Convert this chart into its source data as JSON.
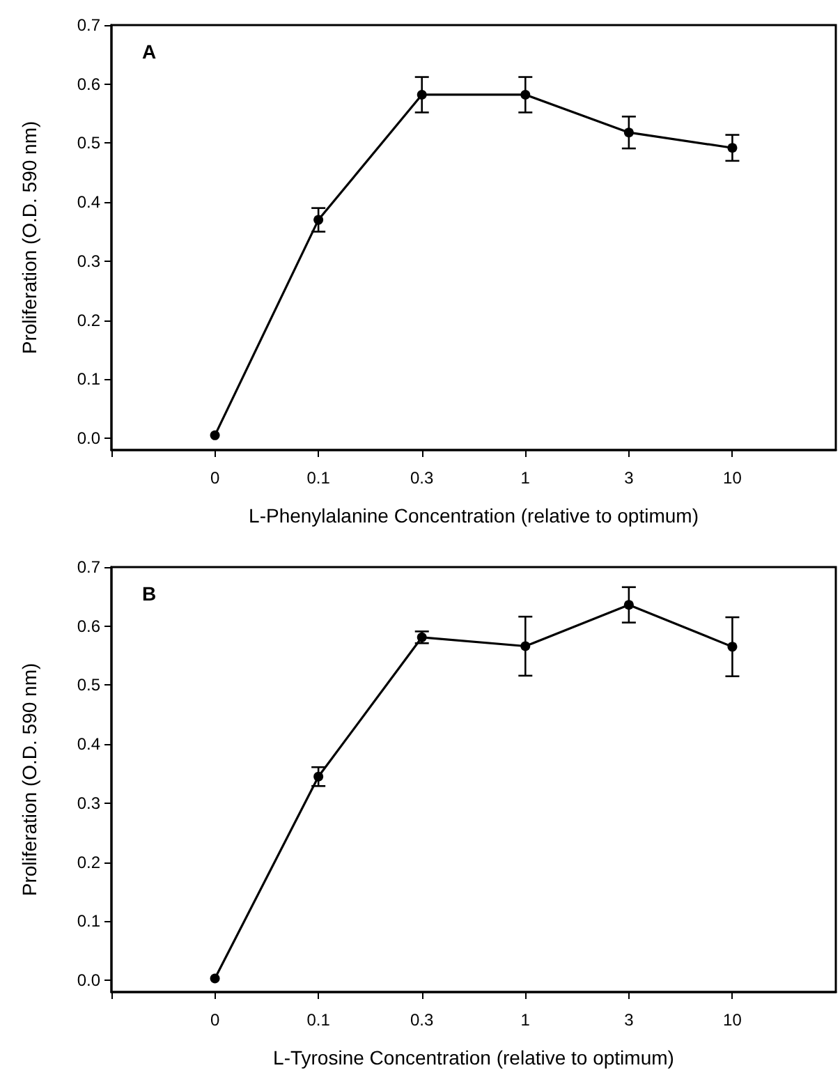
{
  "chart_data": [
    {
      "type": "line",
      "annotations": [
        "A"
      ],
      "xlabel": "L-Phenylalanine Concentration (relative to optimum)",
      "ylabel": "Proliferation (O.D. 590 nm)",
      "categories": [
        null,
        "0",
        "0.1",
        "0.3",
        "1",
        "3",
        "10",
        null
      ],
      "series": [
        {
          "color": "#000000",
          "values": [
            null,
            0.005,
            0.37,
            0.582,
            0.582,
            0.518,
            0.492,
            null
          ],
          "errors": [
            null,
            null,
            0.02,
            0.03,
            0.03,
            0.027,
            0.022,
            null
          ]
        }
      ],
      "ylim": [
        -0.02,
        0.7
      ],
      "yticks": [
        {
          "value": 0,
          "label": "0.0"
        },
        0.1,
        0.2,
        0.3,
        0.4,
        0.5,
        0.6,
        0.7
      ],
      "grid": false,
      "marker": "circle",
      "line_style": "solid"
    },
    {
      "type": "line",
      "annotations": [
        "B"
      ],
      "xlabel": "L-Tyrosine Concentration (relative to optimum)",
      "ylabel": "Proliferation (O.D. 590 nm)",
      "categories": [
        null,
        "0",
        "0.1",
        "0.3",
        "1",
        "3",
        "10",
        null
      ],
      "series": [
        {
          "color": "#000000",
          "values": [
            null,
            0.003,
            0.345,
            0.581,
            0.566,
            0.636,
            0.565,
            null
          ],
          "errors": [
            null,
            null,
            0.016,
            0.01,
            0.05,
            0.03,
            0.05,
            null
          ]
        }
      ],
      "ylim": [
        -0.02,
        0.7
      ],
      "yticks": [
        {
          "value": 0,
          "label": "0.0"
        },
        0.1,
        0.2,
        0.3,
        0.4,
        0.5,
        0.6,
        0.7
      ],
      "grid": false,
      "marker": "circle",
      "line_style": "solid"
    }
  ]
}
